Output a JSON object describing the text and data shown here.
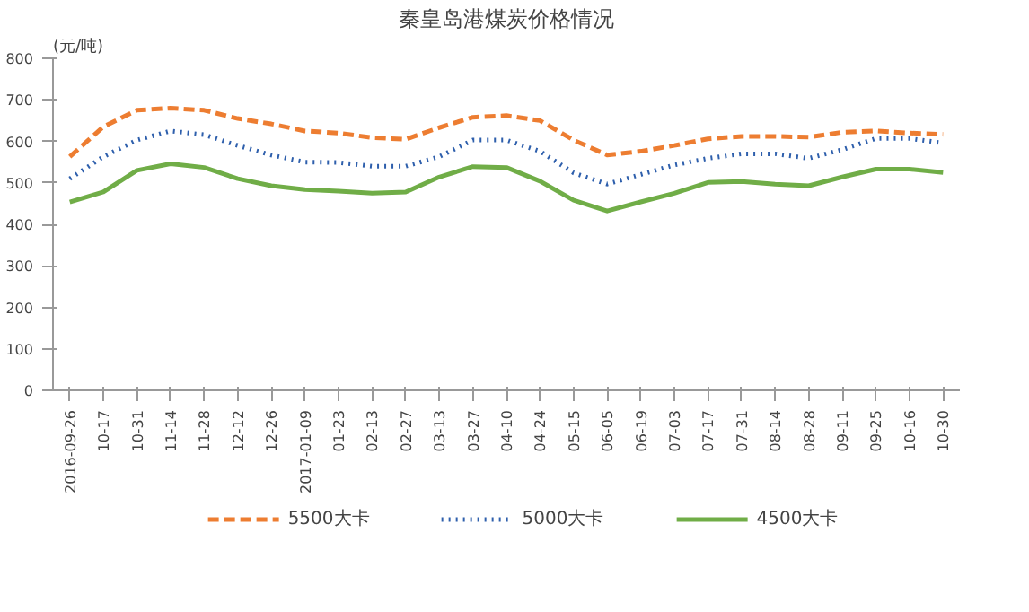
{
  "chart_data": {
    "type": "line",
    "title": "秦皇岛港煤炭价格情况",
    "ylabel": "(元/吨)",
    "categories": [
      "2016-09-26",
      "10-17",
      "10-31",
      "11-14",
      "11-28",
      "12-12",
      "12-26",
      "2017-01-09",
      "01-23",
      "02-13",
      "02-27",
      "03-13",
      "03-27",
      "04-10",
      "04-24",
      "05-15",
      "06-05",
      "06-19",
      "07-03",
      "07-17",
      "07-31",
      "08-14",
      "08-28",
      "09-11",
      "09-25",
      "10-16",
      "10-30"
    ],
    "series": [
      {
        "name": "5500大卡",
        "color": "#ed7d31",
        "line_style": "dashed",
        "values": [
          563,
          635,
          675,
          680,
          675,
          655,
          642,
          625,
          620,
          609,
          605,
          633,
          658,
          662,
          650,
          603,
          567,
          576,
          590,
          606,
          612,
          612,
          610,
          622,
          625,
          620,
          617
        ]
      },
      {
        "name": "5000大卡",
        "color": "#2e5fac",
        "line_style": "dotted",
        "values": [
          510,
          563,
          603,
          625,
          616,
          590,
          567,
          550,
          549,
          540,
          540,
          563,
          603,
          603,
          576,
          524,
          497,
          520,
          543,
          559,
          570,
          570,
          559,
          580,
          607,
          607,
          596
        ]
      },
      {
        "name": "4500大卡",
        "color": "#70ad47",
        "line_style": "solid",
        "values": [
          454,
          478,
          530,
          546,
          537,
          510,
          493,
          484,
          480,
          475,
          478,
          514,
          539,
          537,
          504,
          458,
          432,
          454,
          475,
          501,
          503,
          497,
          493,
          514,
          533,
          533,
          525
        ]
      }
    ],
    "ylim": [
      0,
      800
    ],
    "yticks": [
      0,
      100,
      200,
      300,
      400,
      500,
      600,
      700,
      800
    ],
    "grid": false,
    "legend": "bottom",
    "marker": "none"
  }
}
